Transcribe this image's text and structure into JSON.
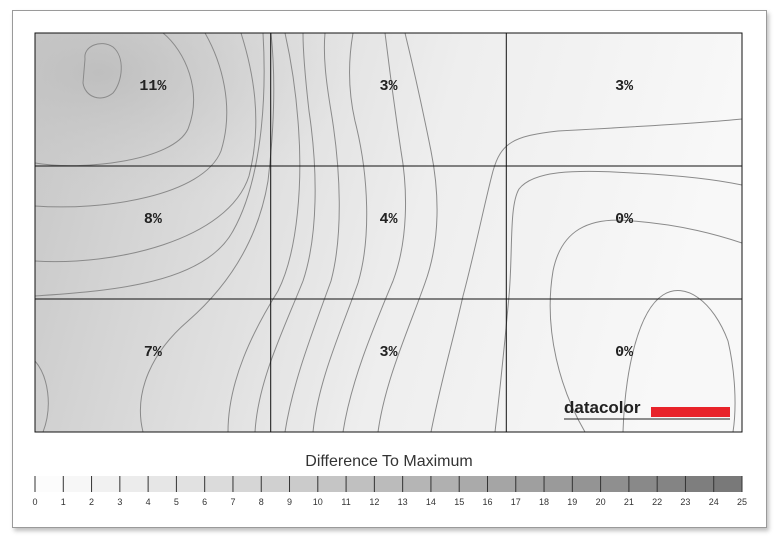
{
  "chart_data": {
    "type": "heatmap",
    "title": "",
    "rows": 3,
    "cols": 3,
    "values": [
      [
        "11%",
        "3%",
        "3%"
      ],
      [
        "8%",
        "4%",
        "0%"
      ],
      [
        "7%",
        "3%",
        "0%"
      ]
    ],
    "legend": {
      "title": "Difference To Maximum",
      "ticks": [
        "0",
        "1",
        "2",
        "3",
        "4",
        "5",
        "6",
        "7",
        "8",
        "9",
        "10",
        "11",
        "12",
        "13",
        "14",
        "15",
        "16",
        "17",
        "18",
        "19",
        "20",
        "21",
        "22",
        "23",
        "24",
        "25"
      ],
      "min": 0,
      "max": 25
    }
  },
  "logo": {
    "text": "datacolor",
    "bar_color": "#e8232a"
  },
  "colors": {
    "grid": "#111111",
    "contour": "#8a8a8a",
    "low": "#f7f7f7",
    "high": "#c4c4c4"
  }
}
